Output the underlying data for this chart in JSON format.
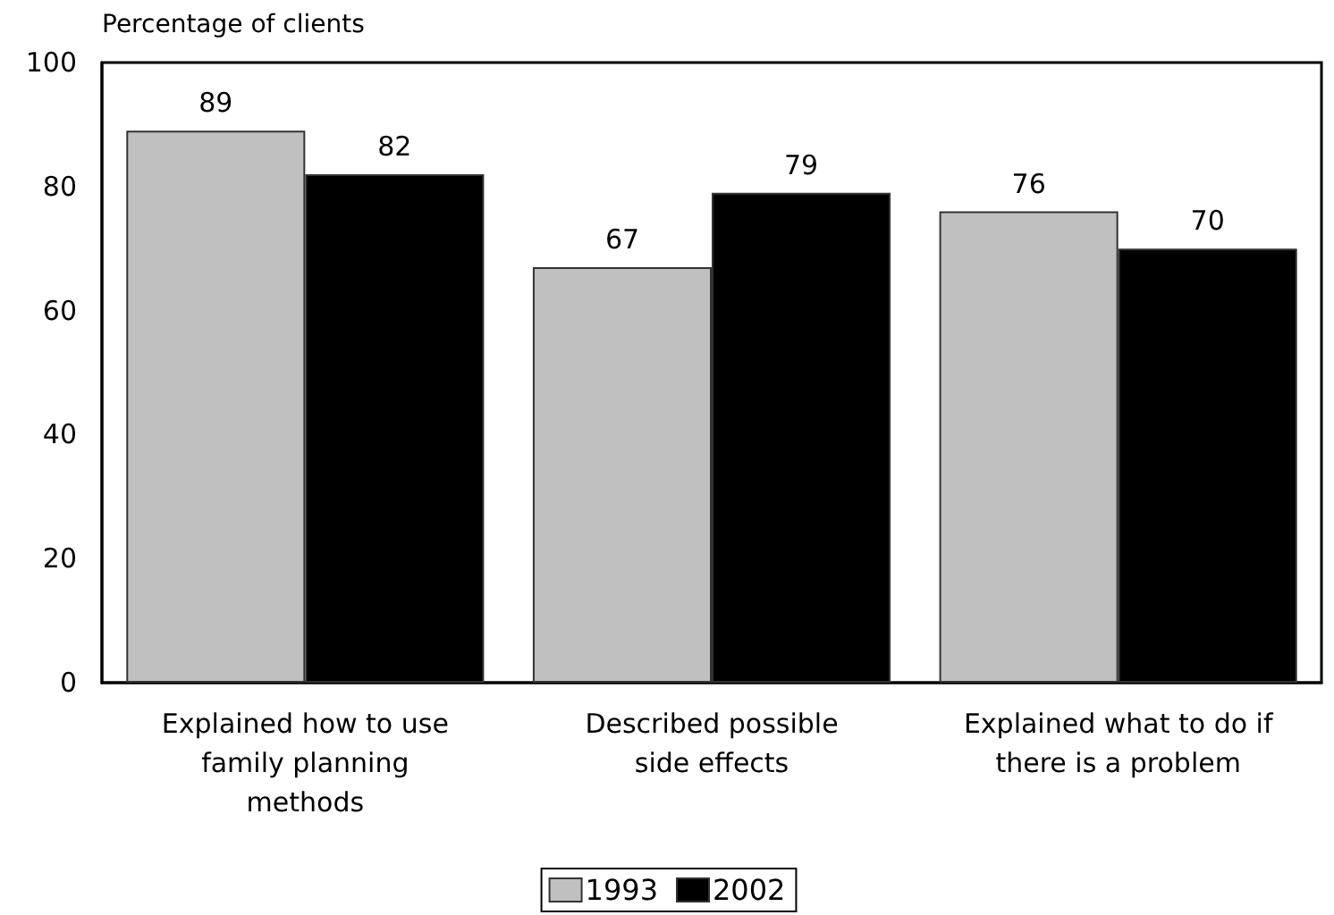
{
  "chart_data": {
    "type": "bar",
    "ylabel": "Percentage of clients",
    "categories": [
      "Explained how to use\nfamily planning\nmethods",
      "Described possible\nside effects",
      "Explained what to do if\nthere is a problem"
    ],
    "series": [
      {
        "name": "1993",
        "color": "#c0c0c0",
        "values": [
          89,
          67,
          76
        ]
      },
      {
        "name": "2002",
        "color": "#000000",
        "values": [
          82,
          79,
          70
        ]
      }
    ],
    "ylim": [
      0,
      100
    ],
    "yticks": [
      0,
      20,
      40,
      60,
      80,
      100
    ],
    "data_labels": true,
    "legend": "bottom"
  }
}
